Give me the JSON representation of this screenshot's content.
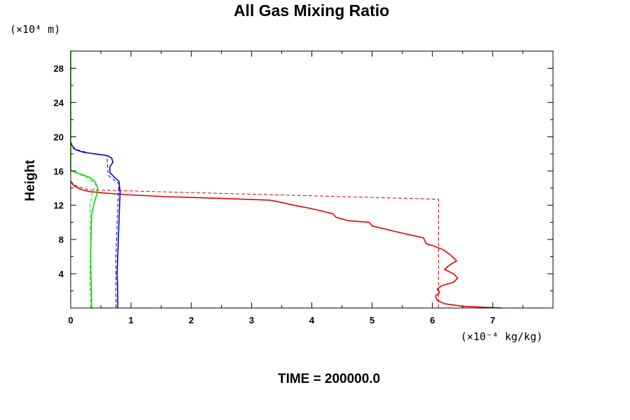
{
  "chart_data": {
    "type": "line",
    "title": "All Gas Mixing Ratio",
    "ylabel": "Height",
    "ylabel_unit": "(×10⁴ m)",
    "xlabel_unit": "(×10⁻⁴ kg/kg)",
    "footer": "TIME = 200000.0",
    "xlim": [
      0,
      8
    ],
    "ylim": [
      0,
      30
    ],
    "xticks": [
      0,
      1,
      2,
      3,
      4,
      5,
      6,
      7
    ],
    "yticks": [
      4,
      8,
      12,
      16,
      20,
      24,
      28
    ],
    "grid": false,
    "colors": {
      "red": "#e00000",
      "blue": "#0000cc",
      "green": "#00dd00"
    },
    "series": [
      {
        "color": "red",
        "style": "solid",
        "points": [
          [
            7.15,
            0.0
          ],
          [
            6.5,
            0.2
          ],
          [
            6.2,
            0.5
          ],
          [
            6.08,
            0.9
          ],
          [
            6.05,
            1.4
          ],
          [
            6.12,
            1.8
          ],
          [
            6.08,
            2.2
          ],
          [
            6.15,
            2.6
          ],
          [
            6.35,
            3.0
          ],
          [
            6.42,
            3.5
          ],
          [
            6.35,
            4.0
          ],
          [
            6.2,
            4.5
          ],
          [
            6.28,
            5.0
          ],
          [
            6.4,
            5.5
          ],
          [
            6.3,
            6.2
          ],
          [
            6.18,
            6.8
          ],
          [
            6.0,
            7.3
          ],
          [
            5.9,
            7.5
          ],
          [
            5.85,
            8.2
          ],
          [
            5.4,
            8.9
          ],
          [
            5.0,
            9.6
          ],
          [
            4.95,
            10.0
          ],
          [
            4.6,
            10.2
          ],
          [
            4.4,
            10.6
          ],
          [
            4.35,
            11.0
          ],
          [
            4.0,
            11.6
          ],
          [
            3.7,
            12.0
          ],
          [
            3.45,
            12.4
          ],
          [
            3.3,
            12.6
          ],
          [
            2.5,
            12.8
          ],
          [
            1.6,
            13.0
          ],
          [
            1.0,
            13.2
          ],
          [
            0.6,
            13.4
          ],
          [
            0.3,
            13.6
          ],
          [
            0.15,
            13.9
          ],
          [
            0.05,
            14.3
          ],
          [
            0.0,
            14.8
          ]
        ]
      },
      {
        "color": "red",
        "style": "dashed",
        "points": [
          [
            6.1,
            0.0
          ],
          [
            6.1,
            12.7
          ],
          [
            0.3,
            13.8
          ],
          [
            0.1,
            14.2
          ],
          [
            0.0,
            14.8
          ]
        ]
      },
      {
        "color": "blue",
        "style": "solid",
        "points": [
          [
            0.78,
            0.0
          ],
          [
            0.78,
            2.0
          ],
          [
            0.77,
            4.0
          ],
          [
            0.78,
            6.0
          ],
          [
            0.79,
            8.0
          ],
          [
            0.8,
            10.0
          ],
          [
            0.81,
            12.0
          ],
          [
            0.82,
            13.5
          ],
          [
            0.8,
            14.8
          ],
          [
            0.72,
            15.3
          ],
          [
            0.65,
            15.8
          ],
          [
            0.65,
            16.5
          ],
          [
            0.7,
            17.0
          ],
          [
            0.68,
            17.5
          ],
          [
            0.6,
            17.8
          ],
          [
            0.4,
            18.0
          ],
          [
            0.2,
            18.2
          ],
          [
            0.08,
            18.5
          ],
          [
            0.02,
            19.0
          ],
          [
            0.0,
            19.4
          ]
        ]
      },
      {
        "color": "blue",
        "style": "dashed",
        "points": [
          [
            0.75,
            0.0
          ],
          [
            0.75,
            6.0
          ],
          [
            0.78,
            12.0
          ],
          [
            0.8,
            14.5
          ],
          [
            0.62,
            15.5
          ],
          [
            0.6,
            17.8
          ],
          [
            0.3,
            18.1
          ],
          [
            0.05,
            18.6
          ],
          [
            0.0,
            19.4
          ]
        ]
      },
      {
        "color": "green",
        "style": "solid",
        "points": [
          [
            0.35,
            0.0
          ],
          [
            0.34,
            3.0
          ],
          [
            0.33,
            6.0
          ],
          [
            0.34,
            9.0
          ],
          [
            0.35,
            11.0
          ],
          [
            0.38,
            12.0
          ],
          [
            0.42,
            13.0
          ],
          [
            0.45,
            14.0
          ],
          [
            0.4,
            14.8
          ],
          [
            0.3,
            15.3
          ],
          [
            0.18,
            15.6
          ],
          [
            0.06,
            15.9
          ],
          [
            0.0,
            16.1
          ]
        ]
      },
      {
        "color": "green",
        "style": "dashed",
        "points": [
          [
            0.33,
            0.0
          ],
          [
            0.32,
            4.0
          ],
          [
            0.33,
            8.0
          ],
          [
            0.32,
            12.0
          ],
          [
            0.36,
            13.5
          ],
          [
            0.42,
            14.5
          ],
          [
            0.25,
            15.3
          ],
          [
            0.05,
            15.9
          ],
          [
            0.0,
            16.2
          ]
        ]
      },
      {
        "color": "green",
        "style": "solid",
        "points": [
          [
            0.0,
            16.2
          ],
          [
            0.0,
            30.0
          ]
        ]
      }
    ]
  }
}
